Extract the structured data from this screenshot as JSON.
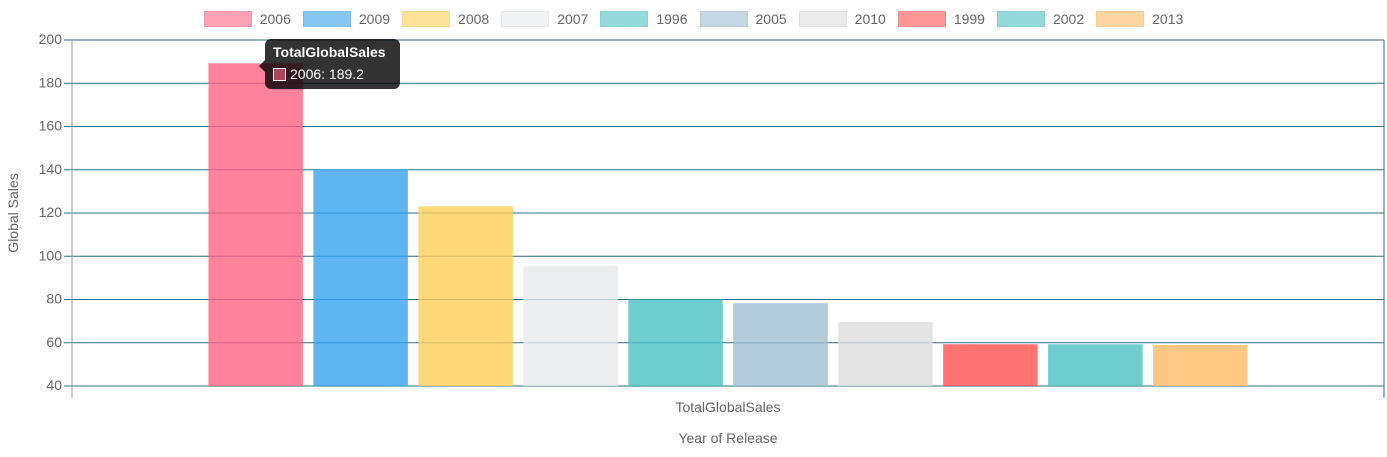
{
  "chart_data": {
    "type": "bar",
    "categories": [
      "TotalGlobalSales"
    ],
    "series": [
      {
        "name": "2006",
        "values": [
          189.2
        ],
        "color": "#ff6384"
      },
      {
        "name": "2009",
        "values": [
          140.2
        ],
        "color": "#36a2eb"
      },
      {
        "name": "2008",
        "values": [
          123.1
        ],
        "color": "#ffce56"
      },
      {
        "name": "2007",
        "values": [
          95.6
        ],
        "color": "#e7e9ed"
      },
      {
        "name": "1996",
        "values": [
          80.0
        ],
        "color": "#4bc0c0"
      },
      {
        "name": "2005",
        "values": [
          78.3
        ],
        "color": "#9fbdd0"
      },
      {
        "name": "2010",
        "values": [
          69.6
        ],
        "color": "#dddddd"
      },
      {
        "name": "1999",
        "values": [
          59.3
        ],
        "color": "#ff5050"
      },
      {
        "name": "2002",
        "values": [
          59.3
        ],
        "color": "#4bc0c0"
      },
      {
        "name": "2013",
        "values": [
          59.0
        ],
        "color": "#ffb865"
      }
    ],
    "xlabel": "Year of Release",
    "ylabel": "Global Sales",
    "ylim": [
      40,
      200
    ],
    "yticks": [
      "40",
      "60",
      "80",
      "100",
      "120",
      "140",
      "160",
      "180",
      "200"
    ],
    "grid": true,
    "legend_position": "top"
  },
  "tooltip": {
    "title": "TotalGlobalSales",
    "label": "2006: 189.2",
    "color": "#ff6384"
  }
}
